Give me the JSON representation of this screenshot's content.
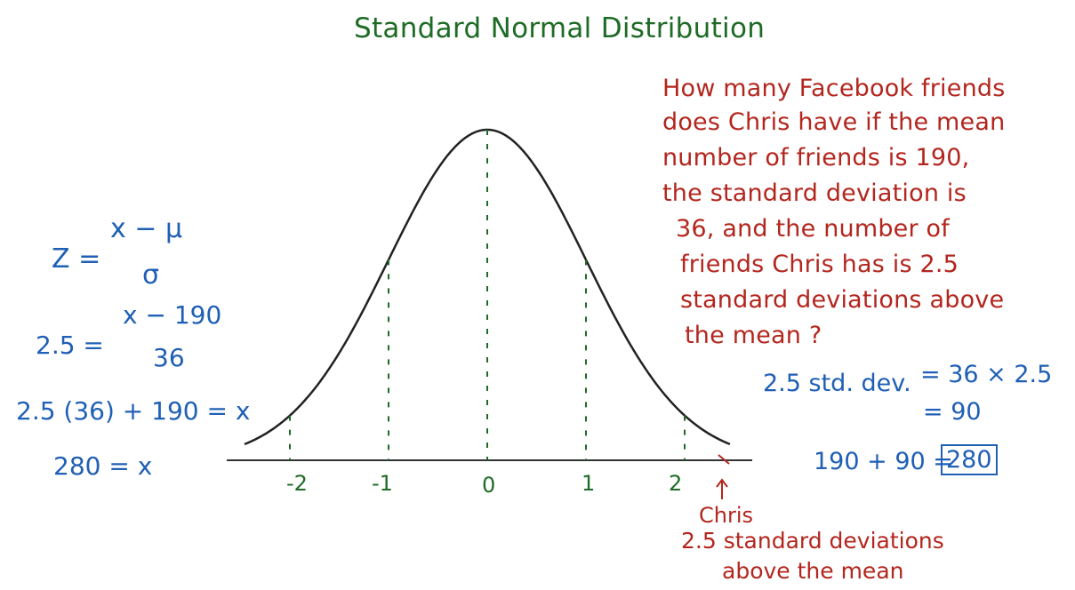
{
  "title": "Standard Normal Distribution",
  "question": {
    "lines": [
      "How many Facebook friends",
      "does Chris have if the mean",
      "number of friends is 190,",
      "the standard deviation is",
      "36, and the number of",
      "friends Chris has is 2.5",
      "standard deviations above",
      "the mean ?"
    ]
  },
  "formula": {
    "z_lhs": "Z =",
    "z_num": "x − μ",
    "z_den": "σ",
    "sub_lhs": "2.5 =",
    "sub_num": "x − 190",
    "sub_den": "36",
    "step": "2.5 (36) + 190 = x",
    "result": "280 = x"
  },
  "right_calc": {
    "line1_label": "2.5 std. dev.",
    "line1_value": "= 36 × 2.5",
    "line2_value": "= 90",
    "line3_expr": "190 + 90 =",
    "answer": "280"
  },
  "axis": {
    "ticks": [
      "-2",
      "-1",
      "0",
      "1",
      "2"
    ],
    "marker_label": "Chris",
    "marker_note_1": "2.5 standard deviations",
    "marker_note_2": "above the mean"
  },
  "colors": {
    "title": "#1e6b26",
    "question": "#b3261e",
    "math": "#1f5fb5",
    "curve": "#222222"
  }
}
